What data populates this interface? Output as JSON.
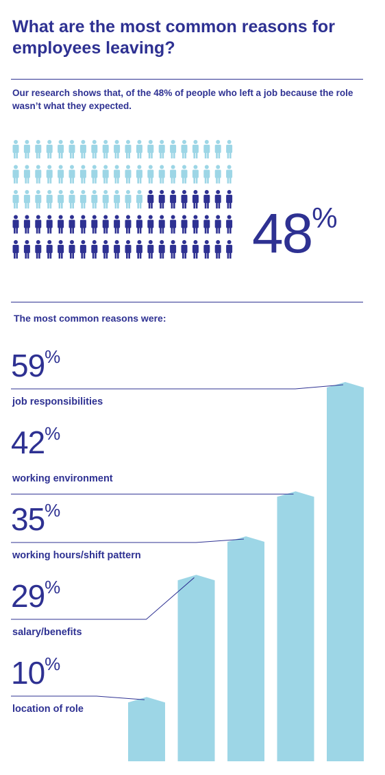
{
  "header": {
    "title": "What are the most common reasons for employees leaving?",
    "subtitle": "Our research shows that, of the 48% of people who left a job because the role wasn’t what they expected."
  },
  "headline": {
    "value": "48",
    "unit": "%"
  },
  "people_graphic": {
    "total": 100,
    "highlighted": 48,
    "rows": 5,
    "per_row": 20
  },
  "section_heading": "The most common reasons were:",
  "colors": {
    "navy": "#2e3192",
    "light_blue": "#9dd6e6",
    "bar": "#9dd6e6"
  },
  "chart_data": {
    "type": "bar",
    "title": "The most common reasons were:",
    "categories": [
      "job responsibilities",
      "working environment",
      "working hours/shift pattern",
      "salary/benefits",
      "location of role"
    ],
    "values": [
      59,
      42,
      35,
      29,
      10
    ],
    "value_labels": [
      "59",
      "42",
      "35",
      "29",
      "10"
    ],
    "unit": "%",
    "grid": false,
    "legend": "none"
  }
}
